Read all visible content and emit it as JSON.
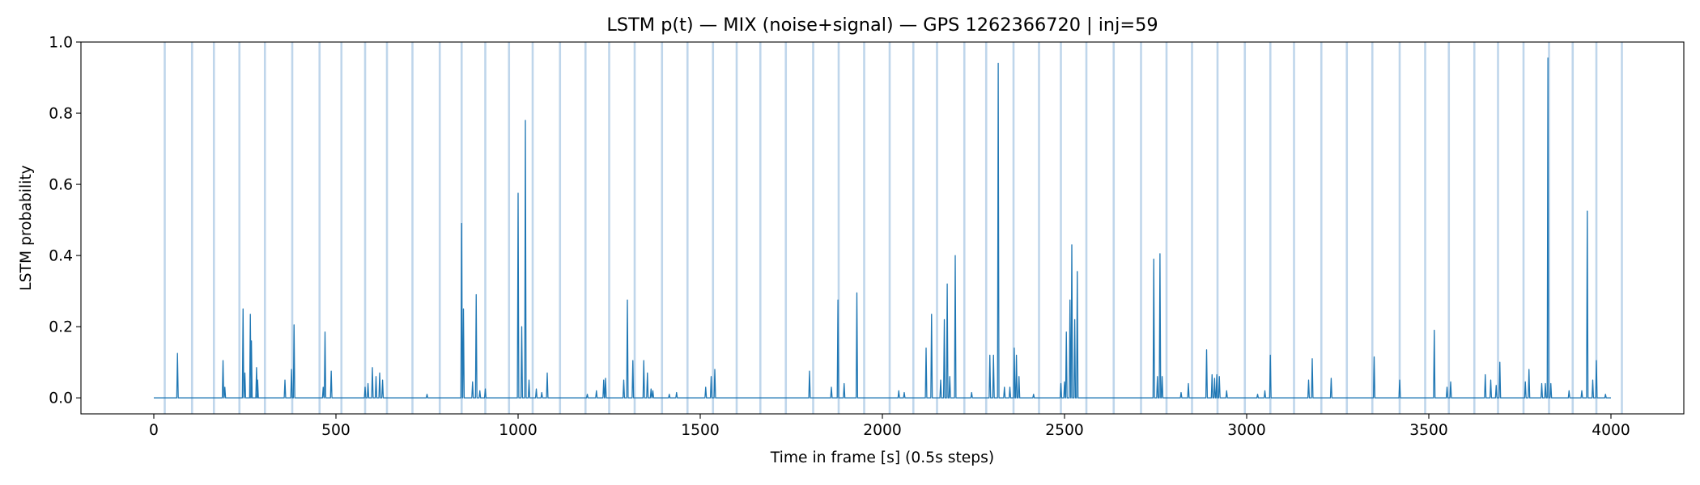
{
  "chart_data": {
    "type": "line",
    "title": "LSTM p(t) — MIX (noise+signal) — GPS 1262366720 | inj=59",
    "xlabel": "Time in frame [s] (0.5s steps)",
    "ylabel": "LSTM probability",
    "xlim": [
      -200,
      4200
    ],
    "ylim": [
      -0.045,
      1.0
    ],
    "xticks": [
      0,
      500,
      1000,
      1500,
      2000,
      2500,
      3000,
      3500,
      4000
    ],
    "xtick_labels": [
      "0",
      "500",
      "1000",
      "1500",
      "2000",
      "2500",
      "3000",
      "3500",
      "4000"
    ],
    "yticks": [
      0.0,
      0.2,
      0.4,
      0.6,
      0.8,
      1.0
    ],
    "ytick_labels": [
      "0.0",
      "0.2",
      "0.4",
      "0.6",
      "0.8",
      "1.0"
    ],
    "grid": false,
    "colors": {
      "line": "#1f77b4",
      "injection_lines": "#a9c8e4"
    },
    "injection_times": [
      30,
      105,
      165,
      235,
      305,
      380,
      455,
      515,
      580,
      640,
      710,
      785,
      845,
      910,
      975,
      1040,
      1115,
      1185,
      1250,
      1320,
      1395,
      1465,
      1535,
      1600,
      1665,
      1735,
      1810,
      1880,
      1950,
      2020,
      2085,
      2150,
      2225,
      2285,
      2360,
      2430,
      2490,
      2560,
      2635,
      2710,
      2780,
      2850,
      2920,
      2995,
      3065,
      3130,
      3205,
      3275,
      3345,
      3420,
      3490,
      3555,
      3625,
      3690,
      3760,
      3830,
      3895,
      3960,
      4030
    ],
    "series": [
      {
        "baseline": 0.0,
        "x_range": [
          0,
          4000
        ],
        "spikes": [
          [
            65,
            0.125
          ],
          [
            190,
            0.105
          ],
          [
            195,
            0.03
          ],
          [
            245,
            0.25
          ],
          [
            250,
            0.07
          ],
          [
            265,
            0.235
          ],
          [
            268,
            0.16
          ],
          [
            282,
            0.085
          ],
          [
            285,
            0.05
          ],
          [
            360,
            0.05
          ],
          [
            378,
            0.08
          ],
          [
            385,
            0.205
          ],
          [
            465,
            0.03
          ],
          [
            470,
            0.185
          ],
          [
            487,
            0.075
          ],
          [
            580,
            0.03
          ],
          [
            588,
            0.04
          ],
          [
            600,
            0.085
          ],
          [
            610,
            0.06
          ],
          [
            620,
            0.07
          ],
          [
            628,
            0.05
          ],
          [
            750,
            0.01
          ],
          [
            845,
            0.49
          ],
          [
            850,
            0.25
          ],
          [
            875,
            0.045
          ],
          [
            885,
            0.29
          ],
          [
            895,
            0.02
          ],
          [
            910,
            0.025
          ],
          [
            1000,
            0.575
          ],
          [
            1010,
            0.2
          ],
          [
            1020,
            0.78
          ],
          [
            1030,
            0.05
          ],
          [
            1050,
            0.025
          ],
          [
            1065,
            0.015
          ],
          [
            1080,
            0.07
          ],
          [
            1190,
            0.01
          ],
          [
            1215,
            0.02
          ],
          [
            1235,
            0.05
          ],
          [
            1240,
            0.055
          ],
          [
            1290,
            0.05
          ],
          [
            1300,
            0.275
          ],
          [
            1315,
            0.105
          ],
          [
            1345,
            0.105
          ],
          [
            1355,
            0.07
          ],
          [
            1365,
            0.025
          ],
          [
            1370,
            0.02
          ],
          [
            1415,
            0.01
          ],
          [
            1435,
            0.015
          ],
          [
            1515,
            0.03
          ],
          [
            1530,
            0.06
          ],
          [
            1540,
            0.08
          ],
          [
            1800,
            0.075
          ],
          [
            1860,
            0.03
          ],
          [
            1878,
            0.275
          ],
          [
            1895,
            0.04
          ],
          [
            1930,
            0.295
          ],
          [
            2045,
            0.02
          ],
          [
            2060,
            0.015
          ],
          [
            2120,
            0.14
          ],
          [
            2135,
            0.235
          ],
          [
            2160,
            0.05
          ],
          [
            2170,
            0.22
          ],
          [
            2178,
            0.32
          ],
          [
            2185,
            0.06
          ],
          [
            2200,
            0.4
          ],
          [
            2245,
            0.015
          ],
          [
            2295,
            0.12
          ],
          [
            2305,
            0.12
          ],
          [
            2318,
            0.94
          ],
          [
            2335,
            0.03
          ],
          [
            2350,
            0.03
          ],
          [
            2362,
            0.14
          ],
          [
            2368,
            0.12
          ],
          [
            2375,
            0.06
          ],
          [
            2415,
            0.01
          ],
          [
            2490,
            0.04
          ],
          [
            2500,
            0.045
          ],
          [
            2505,
            0.185
          ],
          [
            2515,
            0.275
          ],
          [
            2520,
            0.43
          ],
          [
            2528,
            0.22
          ],
          [
            2535,
            0.355
          ],
          [
            2745,
            0.39
          ],
          [
            2755,
            0.06
          ],
          [
            2762,
            0.405
          ],
          [
            2768,
            0.06
          ],
          [
            2820,
            0.015
          ],
          [
            2840,
            0.04
          ],
          [
            2890,
            0.135
          ],
          [
            2905,
            0.065
          ],
          [
            2912,
            0.055
          ],
          [
            2918,
            0.065
          ],
          [
            2925,
            0.06
          ],
          [
            2945,
            0.02
          ],
          [
            3030,
            0.01
          ],
          [
            3050,
            0.02
          ],
          [
            3065,
            0.12
          ],
          [
            3170,
            0.05
          ],
          [
            3180,
            0.11
          ],
          [
            3232,
            0.055
          ],
          [
            3350,
            0.115
          ],
          [
            3420,
            0.05
          ],
          [
            3515,
            0.19
          ],
          [
            3550,
            0.03
          ],
          [
            3560,
            0.045
          ],
          [
            3655,
            0.065
          ],
          [
            3670,
            0.05
          ],
          [
            3685,
            0.035
          ],
          [
            3695,
            0.1
          ],
          [
            3765,
            0.045
          ],
          [
            3775,
            0.08
          ],
          [
            3810,
            0.04
          ],
          [
            3820,
            0.04
          ],
          [
            3827,
            0.955
          ],
          [
            3835,
            0.04
          ],
          [
            3885,
            0.02
          ],
          [
            3920,
            0.02
          ],
          [
            3935,
            0.525
          ],
          [
            3950,
            0.05
          ],
          [
            3960,
            0.105
          ],
          [
            3985,
            0.01
          ]
        ]
      }
    ]
  }
}
